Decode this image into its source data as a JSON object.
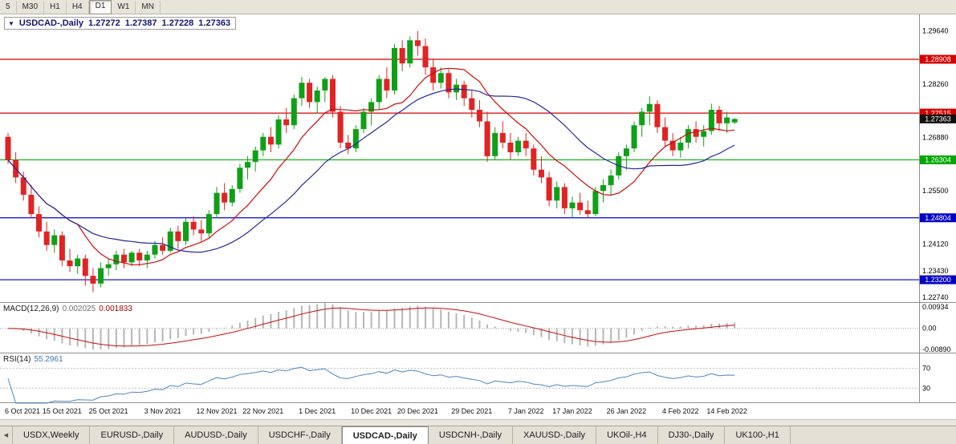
{
  "toolbar": {
    "timeframes": [
      {
        "label": "5",
        "active": false
      },
      {
        "label": "M30",
        "active": false
      },
      {
        "label": "H1",
        "active": false
      },
      {
        "label": "H4",
        "active": false
      },
      {
        "label": "D1",
        "active": true
      },
      {
        "label": "W1",
        "active": false
      },
      {
        "label": "MN",
        "active": false
      }
    ]
  },
  "chart": {
    "collapse_icon": "▼",
    "symbol_period": "USDCAD-,Daily",
    "open": "1.27272",
    "high": "1.27387",
    "low": "1.27228",
    "close": "1.27363"
  },
  "panes": {
    "macd": {
      "label": "MACD(12,26,9)",
      "value": "0.002025",
      "signal": "0.001833",
      "scale": [
        {
          "text": "0.00934",
          "value": 0.00934
        },
        {
          "text": "0.00",
          "value": 0
        },
        {
          "text": "-0.00890",
          "value": -0.0089
        }
      ]
    },
    "rsi": {
      "label": "RSI(14)",
      "value": "55.2961",
      "levels": [
        {
          "text": "70",
          "value": 70
        },
        {
          "text": "30",
          "value": 30
        }
      ]
    }
  },
  "price_axis": {
    "labels": [
      {
        "text": "1.29640",
        "price": 1.2964
      },
      {
        "text": "1.28260",
        "price": 1.2826
      },
      {
        "text": "1.26880",
        "price": 1.2688
      },
      {
        "text": "1.25500",
        "price": 1.255
      },
      {
        "text": "1.24120",
        "price": 1.2412
      },
      {
        "text": "1.23430",
        "price": 1.2343
      },
      {
        "text": "1.22740",
        "price": 1.2274
      }
    ],
    "badges": [
      {
        "text": "1.28908",
        "price": 1.28908,
        "bg": "#d60000"
      },
      {
        "text": "1.27515",
        "price": 1.27515,
        "bg": "#d60000"
      },
      {
        "text": "1.27363",
        "price": 1.27363,
        "bg": "#111111"
      },
      {
        "text": "1.26304",
        "price": 1.26304,
        "bg": "#00a800"
      },
      {
        "text": "1.24804",
        "price": 1.24804,
        "bg": "#0000c8"
      },
      {
        "text": "1.23200",
        "price": 1.232,
        "bg": "#0000c8"
      }
    ]
  },
  "tabs_bar": {
    "scroll_left_icon": "◀",
    "tabs": [
      {
        "label": "USDX,Weekly",
        "active": false
      },
      {
        "label": "EURUSD-,Daily",
        "active": false
      },
      {
        "label": "AUDUSD-,Daily",
        "active": false
      },
      {
        "label": "USDCHF-,Daily",
        "active": false
      },
      {
        "label": "USDCAD-,Daily",
        "active": true
      },
      {
        "label": "USDCNH-,Daily",
        "active": false
      },
      {
        "label": "XAUUSD-,Daily",
        "active": false
      },
      {
        "label": "UKOil-,H4",
        "active": false
      },
      {
        "label": "DJ30-,Daily",
        "active": false
      },
      {
        "label": "UK100-,H1",
        "active": false
      }
    ]
  },
  "chart_data": {
    "type": "candlestick",
    "symbol": "USDCAD-",
    "timeframe": "Daily",
    "y_range": [
      1.2262,
      1.3009
    ],
    "colors": {
      "bull": "#0fa018",
      "bear": "#df2423",
      "ma_fast": "#cb0a0a",
      "ma_slow": "#26269b",
      "macd_hist": "#b6b6b6",
      "macd_signal": "#cb0a0a",
      "rsi_line": "#4a86c0",
      "level_dash": "#bdbdbd"
    },
    "hlines": [
      {
        "price": 1.28908,
        "color": "#d60000"
      },
      {
        "price": 1.27515,
        "color": "#d60000"
      },
      {
        "price": 1.26304,
        "color": "#00b400"
      },
      {
        "price": 1.24804,
        "color": "#0000cd"
      },
      {
        "price": 1.232,
        "color": "#0000cd"
      }
    ],
    "overlays": [
      {
        "name": "ma-fast",
        "period": 10,
        "color": "#cb0a0a"
      },
      {
        "name": "ma-slow",
        "period": 21,
        "color": "#26269b"
      }
    ],
    "indicators": {
      "macd": {
        "params": "12,26,9",
        "value": 0.002025,
        "signal": 0.001833,
        "scale_max": 0.00934,
        "scale_min": -0.0089
      },
      "rsi": {
        "period": 14,
        "value": 55.2961,
        "levels": [
          70,
          30
        ]
      }
    },
    "x_labels": [
      {
        "text": "6 Oct 2021",
        "i": 0
      },
      {
        "text": "15 Oct 2021",
        "i": 7
      },
      {
        "text": "25 Oct 2021",
        "i": 13
      },
      {
        "text": "3 Nov 2021",
        "i": 20
      },
      {
        "text": "12 Nov 2021",
        "i": 27
      },
      {
        "text": "22 Nov 2021",
        "i": 33
      },
      {
        "text": "1 Dec 2021",
        "i": 40
      },
      {
        "text": "10 Dec 2021",
        "i": 47
      },
      {
        "text": "20 Dec 2021",
        "i": 53
      },
      {
        "text": "29 Dec 2021",
        "i": 60
      },
      {
        "text": "7 Jan 2022",
        "i": 67
      },
      {
        "text": "17 Jan 2022",
        "i": 73
      },
      {
        "text": "26 Jan 2022",
        "i": 80
      },
      {
        "text": "4 Feb 2022",
        "i": 87
      },
      {
        "text": "14 Feb 2022",
        "i": 93
      }
    ],
    "open": [
      1.269,
      1.263,
      1.2585,
      1.254,
      1.249,
      1.2445,
      1.241,
      1.2435,
      1.237,
      1.2355,
      1.2375,
      1.233,
      1.231,
      1.235,
      1.236,
      1.2385,
      1.2365,
      1.239,
      1.237,
      1.2385,
      1.241,
      1.2395,
      1.2445,
      1.242,
      1.247,
      1.245,
      1.244,
      1.249,
      1.2545,
      1.252,
      1.2555,
      1.261,
      1.2625,
      1.2655,
      1.269,
      1.267,
      1.2735,
      1.272,
      1.279,
      1.283,
      1.278,
      1.281,
      1.284,
      1.2755,
      1.2675,
      1.266,
      1.271,
      1.2755,
      1.278,
      1.284,
      1.281,
      1.292,
      1.288,
      1.294,
      1.2925,
      1.287,
      1.283,
      1.2855,
      1.2805,
      1.2825,
      1.279,
      1.276,
      1.273,
      1.264,
      1.27,
      1.2675,
      1.265,
      1.268,
      1.266,
      1.2605,
      1.2585,
      1.2525,
      1.256,
      1.2505,
      1.252,
      1.25,
      1.249,
      1.255,
      1.2565,
      1.259,
      1.264,
      1.266,
      1.272,
      1.2755,
      1.2775,
      1.2715,
      1.268,
      1.2655,
      1.2675,
      1.271,
      1.269,
      1.2705,
      1.276,
      1.2725,
      1.27272
    ],
    "high": [
      1.27,
      1.265,
      1.26,
      1.2565,
      1.251,
      1.247,
      1.245,
      1.2445,
      1.24,
      1.2385,
      1.2385,
      1.235,
      1.2365,
      1.2375,
      1.2395,
      1.24,
      1.2395,
      1.24,
      1.2395,
      1.242,
      1.243,
      1.2455,
      1.246,
      1.248,
      1.2485,
      1.2475,
      1.25,
      1.256,
      1.257,
      1.2565,
      1.262,
      1.264,
      1.2665,
      1.27,
      1.2715,
      1.2745,
      1.2765,
      1.28,
      1.2845,
      1.284,
      1.282,
      1.2845,
      1.285,
      1.277,
      1.2695,
      1.272,
      1.2765,
      1.279,
      1.285,
      1.287,
      1.293,
      1.294,
      1.295,
      1.2964,
      1.2945,
      1.289,
      1.287,
      1.2865,
      1.284,
      1.2835,
      1.281,
      1.2785,
      1.2755,
      1.2715,
      1.273,
      1.27,
      1.269,
      1.27,
      1.267,
      1.264,
      1.26,
      1.2575,
      1.257,
      1.2535,
      1.2545,
      1.2525,
      1.256,
      1.258,
      1.2605,
      1.265,
      1.267,
      1.273,
      1.2765,
      1.2795,
      1.2785,
      1.274,
      1.27,
      1.269,
      1.272,
      1.273,
      1.272,
      1.2776,
      1.277,
      1.2755,
      1.27387
    ],
    "low": [
      1.262,
      1.257,
      1.2525,
      1.248,
      1.243,
      1.2395,
      1.239,
      1.2355,
      1.234,
      1.2335,
      1.2305,
      1.2288,
      1.23,
      1.233,
      1.2345,
      1.235,
      1.2355,
      1.2355,
      1.235,
      1.2375,
      1.2385,
      1.239,
      1.24,
      1.241,
      1.2435,
      1.242,
      1.243,
      1.248,
      1.25,
      1.251,
      1.2545,
      1.258,
      1.26,
      1.264,
      1.265,
      1.266,
      1.27,
      1.271,
      1.277,
      1.2765,
      1.275,
      1.278,
      1.274,
      1.266,
      1.2645,
      1.265,
      1.27,
      1.272,
      1.276,
      1.279,
      1.28,
      1.286,
      1.287,
      1.29,
      1.285,
      1.281,
      1.2815,
      1.279,
      1.2785,
      1.277,
      1.274,
      1.2715,
      1.2625,
      1.263,
      1.266,
      1.263,
      1.264,
      1.264,
      1.259,
      1.257,
      1.251,
      1.2505,
      1.249,
      1.2482,
      1.2488,
      1.2482,
      1.2485,
      1.252,
      1.254,
      1.258,
      1.2605,
      1.265,
      1.269,
      1.272,
      1.27,
      1.2665,
      1.264,
      1.2636,
      1.266,
      1.2675,
      1.2665,
      1.2695,
      1.2705,
      1.27,
      1.27228
    ],
    "close": [
      1.263,
      1.2585,
      1.254,
      1.249,
      1.2445,
      1.241,
      1.2435,
      1.237,
      1.2355,
      1.2375,
      1.233,
      1.231,
      1.235,
      1.236,
      1.2385,
      1.2365,
      1.239,
      1.237,
      1.2385,
      1.241,
      1.2395,
      1.2445,
      1.242,
      1.247,
      1.245,
      1.244,
      1.249,
      1.2545,
      1.252,
      1.2555,
      1.261,
      1.2625,
      1.2655,
      1.269,
      1.267,
      1.2735,
      1.272,
      1.279,
      1.283,
      1.278,
      1.281,
      1.284,
      1.2755,
      1.2675,
      1.266,
      1.271,
      1.2755,
      1.278,
      1.284,
      1.281,
      1.292,
      1.288,
      1.294,
      1.2925,
      1.287,
      1.283,
      1.2855,
      1.2805,
      1.2825,
      1.279,
      1.276,
      1.273,
      1.264,
      1.27,
      1.2675,
      1.265,
      1.268,
      1.266,
      1.2605,
      1.2585,
      1.2525,
      1.256,
      1.2505,
      1.252,
      1.25,
      1.249,
      1.255,
      1.2565,
      1.259,
      1.264,
      1.266,
      1.272,
      1.2755,
      1.2775,
      1.2715,
      1.268,
      1.2655,
      1.2675,
      1.271,
      1.269,
      1.2705,
      1.276,
      1.2725,
      1.274,
      1.27363
    ]
  }
}
